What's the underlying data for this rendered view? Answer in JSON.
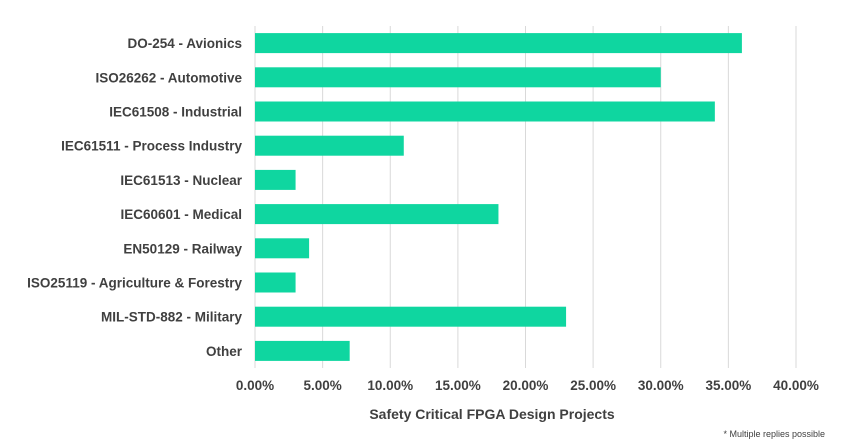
{
  "chart_data": {
    "type": "bar",
    "orientation": "horizontal",
    "categories": [
      "DO-254 - Avionics",
      "ISO26262 - Automotive",
      "IEC61508 - Industrial",
      "IEC61511 - Process Industry",
      "IEC61513 - Nuclear",
      "IEC60601 - Medical",
      "EN50129 - Railway",
      "ISO25119 - Agriculture & Forestry",
      "MIL-STD-882 - Military",
      "Other"
    ],
    "values": [
      36,
      30,
      34,
      11,
      3,
      18,
      4,
      3,
      23,
      7
    ],
    "xlabel": "Safety Critical FPGA Design Projects",
    "xlim": [
      0,
      40
    ],
    "xticks": [
      "0.00%",
      "5.00%",
      "10.00%",
      "15.00%",
      "20.00%",
      "25.00%",
      "30.00%",
      "35.00%",
      "40.00%"
    ],
    "grid": "vertical",
    "bar_color": "#0fd6a0",
    "gridline_color": "#d9d9d9",
    "footnote": "* Multiple replies possible"
  }
}
